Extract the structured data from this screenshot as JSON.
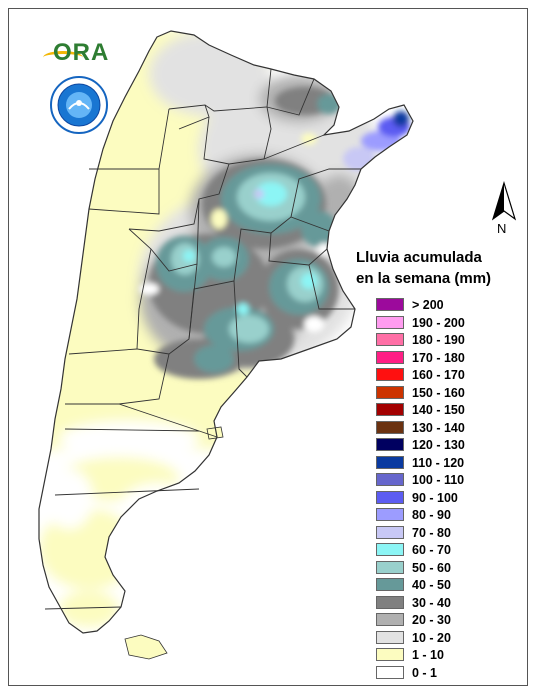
{
  "legend": {
    "title_line1": "Lluvia acumulada",
    "title_line2": "en la semana (mm)",
    "items": [
      {
        "label": "> 200",
        "color": "#9c0a9c"
      },
      {
        "label": "190 - 200",
        "color": "#ff9cf0"
      },
      {
        "label": "180 - 190",
        "color": "#ff6fa6"
      },
      {
        "label": "170 - 180",
        "color": "#ff1f85"
      },
      {
        "label": "160 - 170",
        "color": "#ff1010"
      },
      {
        "label": "150 - 160",
        "color": "#cc3300"
      },
      {
        "label": "140 - 150",
        "color": "#a30000"
      },
      {
        "label": "130 - 140",
        "color": "#6b3210"
      },
      {
        "label": "120 - 130",
        "color": "#000060"
      },
      {
        "label": "110 - 120",
        "color": "#0a3aa0"
      },
      {
        "label": "100 - 110",
        "color": "#6666cc"
      },
      {
        "label": "90 - 100",
        "color": "#5c5cf2"
      },
      {
        "label": "80 - 90",
        "color": "#9c9cff"
      },
      {
        "label": "70 - 80",
        "color": "#c8c8f5"
      },
      {
        "label": "60 - 70",
        "color": "#8cf5f5"
      },
      {
        "label": "50 - 60",
        "color": "#99d0cc"
      },
      {
        "label": "40 - 50",
        "color": "#669999"
      },
      {
        "label": "30 - 40",
        "color": "#808080"
      },
      {
        "label": "20 - 30",
        "color": "#b0b0b0"
      },
      {
        "label": "10 - 20",
        "color": "#e2e2e2"
      },
      {
        "label": "1 - 10",
        "color": "#fcfcc0"
      },
      {
        "label": "0 - 1",
        "color": "#ffffff"
      }
    ]
  },
  "north_label": "N",
  "logo_text": "ORA"
}
